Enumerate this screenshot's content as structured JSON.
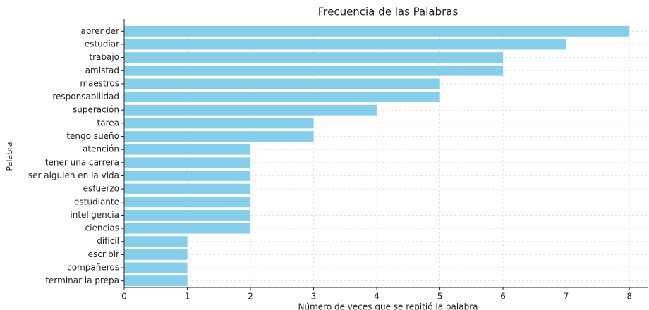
{
  "chart_data": {
    "type": "barh",
    "title": "Frecuencia de las Palabras",
    "xlabel": "Número de veces que se repitió la palabra",
    "ylabel": "Palabra",
    "categories": [
      "aprender",
      "estudiar",
      "trabajo",
      "amistad",
      "maestros",
      "responsabilidad",
      "superación",
      "tarea",
      "tengo sueño",
      "atención",
      "tener una carrera",
      "ser alguien en la vida",
      "esfuerzo",
      "estudiante",
      "inteligencia",
      "ciencias",
      "difícil",
      "escribir",
      "compañeros",
      "terminar la prepa"
    ],
    "values": [
      8,
      7,
      6,
      6,
      5,
      5,
      4,
      3,
      3,
      2,
      2,
      2,
      2,
      2,
      2,
      2,
      1,
      1,
      1,
      1
    ],
    "color": "#87ceeb",
    "xlim": [
      0,
      8.3
    ],
    "xticks": [
      0,
      1,
      2,
      3,
      4,
      5,
      6,
      7,
      8
    ],
    "grid": true
  }
}
